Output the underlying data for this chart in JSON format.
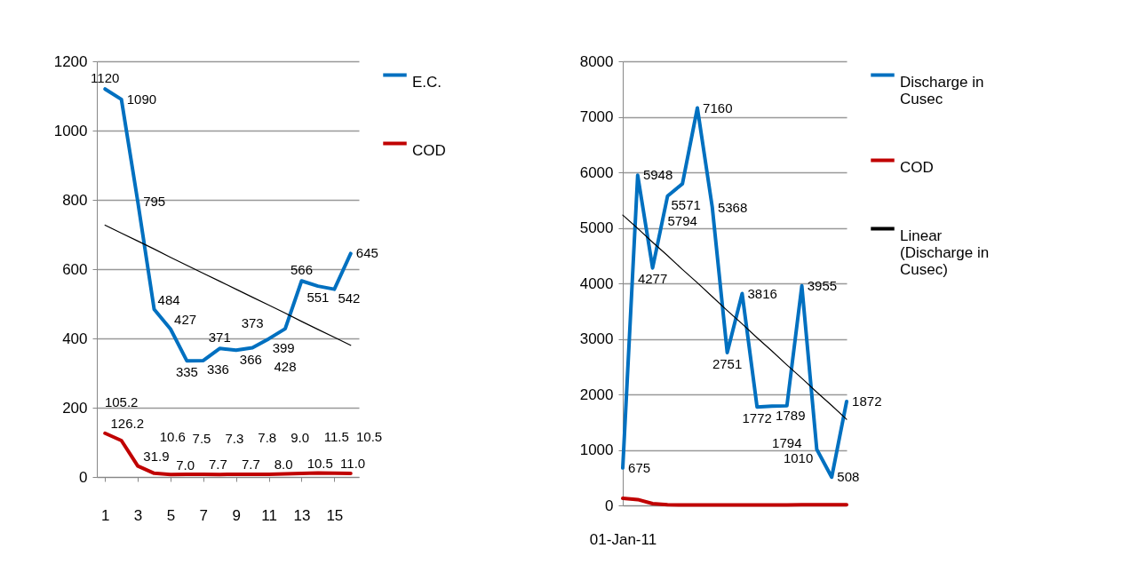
{
  "chart_data": [
    {
      "type": "line",
      "x": [
        1,
        2,
        3,
        4,
        5,
        6,
        7,
        8,
        9,
        10,
        11,
        12,
        13,
        14,
        15,
        16
      ],
      "xlim": [
        0.5,
        16.5
      ],
      "xticks": [
        1,
        3,
        5,
        7,
        9,
        11,
        13,
        15
      ],
      "ylim": [
        0,
        1200
      ],
      "yticks": [
        0,
        200,
        400,
        600,
        800,
        1000,
        1200
      ],
      "grid": "y",
      "legend": "right",
      "series": [
        {
          "name": "E.C.",
          "color": "#0070c0",
          "values": [
            1120,
            1090,
            795,
            484,
            427,
            335,
            336,
            371,
            366,
            373,
            399,
            428,
            566,
            551,
            542,
            645
          ],
          "value_labels": [
            "1120",
            "1090",
            "795",
            "484",
            "427",
            "335",
            "336",
            "371",
            "366",
            "373",
            "399",
            "428",
            "566",
            "551",
            "542",
            "645"
          ]
        },
        {
          "name": "COD",
          "color": "#c00000",
          "values": [
            126.2,
            105.2,
            31.9,
            10.6,
            7.0,
            7.5,
            7.7,
            7.3,
            7.7,
            7.8,
            8.0,
            9.0,
            10.5,
            11.5,
            11.0,
            10.5
          ],
          "value_labels": [
            "126.2",
            "105.2",
            "31.9",
            "10.6",
            "7.0",
            "7.5",
            "7.7",
            "7.3",
            "7.7",
            "7.8",
            "8.0",
            "9.0",
            "10.5",
            "11.5",
            "11.0",
            "10.5"
          ]
        },
        {
          "type": "line",
          "color": "#000000",
          "values": [
            727,
            704,
            681,
            658,
            634,
            611,
            588,
            565,
            542,
            519,
            496,
            473,
            449,
            426,
            403,
            380
          ]
        }
      ]
    },
    {
      "type": "line",
      "categories": [
        "01-Jan-11",
        null,
        null,
        null,
        null,
        null,
        null,
        null,
        null,
        null,
        null,
        null,
        null,
        null,
        null,
        null
      ],
      "ylim": [
        0,
        8000
      ],
      "yticks": [
        0,
        1000,
        2000,
        3000,
        4000,
        5000,
        6000,
        7000,
        8000
      ],
      "grid": "y",
      "legend": "right",
      "series": [
        {
          "name": "Discharge in Cusec",
          "color": "#0070c0",
          "values": [
            675,
            5948,
            4277,
            5571,
            5794,
            7160,
            5368,
            2751,
            3816,
            1772,
            1789,
            1794,
            3955,
            1010,
            508,
            1872
          ],
          "value_labels": [
            "675",
            "5948",
            "4277",
            "5571",
            "5794",
            "7160",
            "5368",
            "2751",
            "3816",
            "1772",
            "1789",
            "1794",
            "3955",
            "1010",
            "508",
            "1872"
          ]
        },
        {
          "name": "COD",
          "color": "#c00000",
          "values": [
            126.2,
            105.2,
            31.9,
            10.6,
            7.0,
            7.5,
            7.7,
            7.3,
            7.7,
            7.8,
            8.0,
            9.0,
            10.5,
            11.5,
            11.0,
            10.5
          ]
        },
        {
          "name": "Linear (Discharge in Cusec)",
          "type": "line",
          "color": "#000000",
          "values": [
            5230,
            4990,
            4740,
            4500,
            4250,
            4010,
            3760,
            3510,
            3270,
            3020,
            2780,
            2530,
            2290,
            2040,
            1800,
            1550
          ]
        }
      ]
    }
  ]
}
